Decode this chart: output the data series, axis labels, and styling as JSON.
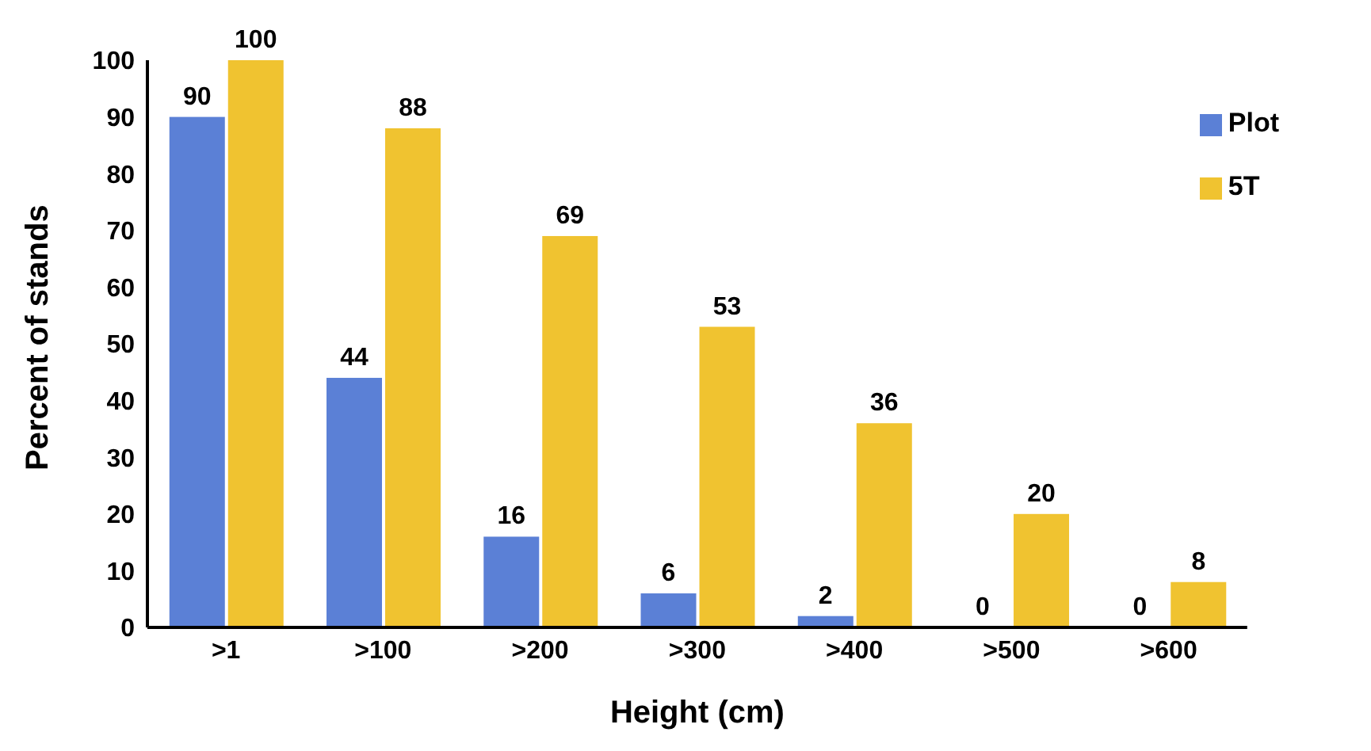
{
  "chart_data": {
    "type": "bar",
    "xlabel": "Height (cm)",
    "ylabel": "Percent of stands",
    "categories": [
      ">1",
      ">100",
      ">200",
      ">300",
      ">400",
      ">500",
      ">600"
    ],
    "series": [
      {
        "name": "Plot",
        "color": "#5b80d6",
        "values": [
          90,
          44,
          16,
          6,
          2,
          0,
          0
        ]
      },
      {
        "name": "5T",
        "color": "#f0c330",
        "values": [
          100,
          88,
          69,
          53,
          36,
          20,
          8
        ]
      }
    ],
    "ylim": [
      0,
      100
    ],
    "yticks": [
      0,
      10,
      20,
      30,
      40,
      50,
      60,
      70,
      80,
      90,
      100
    ],
    "grid": false,
    "legend": "top right",
    "data_labels": true
  }
}
